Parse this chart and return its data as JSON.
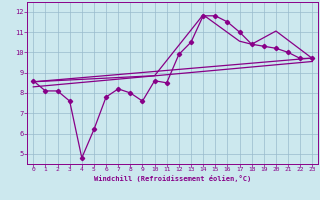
{
  "xlabel": "Windchill (Refroidissement éolien,°C)",
  "xlim": [
    -0.5,
    23.5
  ],
  "ylim": [
    4.5,
    12.5
  ],
  "xticks": [
    0,
    1,
    2,
    3,
    4,
    5,
    6,
    7,
    8,
    9,
    10,
    11,
    12,
    13,
    14,
    15,
    16,
    17,
    18,
    19,
    20,
    21,
    22,
    23
  ],
  "yticks": [
    5,
    6,
    7,
    8,
    9,
    10,
    11,
    12
  ],
  "bg_color": "#cce8ee",
  "line_color": "#880088",
  "grid_color": "#99bbcc",
  "lines": [
    {
      "x": [
        0,
        1,
        2,
        3,
        4,
        5,
        6,
        7,
        8,
        9,
        10,
        11,
        12,
        13,
        14,
        15,
        16,
        17,
        18,
        19,
        20,
        21,
        22,
        23
      ],
      "y": [
        8.6,
        8.1,
        8.1,
        7.6,
        4.8,
        6.2,
        7.8,
        8.2,
        8.0,
        7.6,
        8.6,
        8.5,
        9.9,
        10.5,
        11.8,
        11.8,
        11.5,
        11.0,
        10.4,
        10.3,
        10.2,
        10.0,
        9.7,
        9.7
      ],
      "marker": "D",
      "markersize": 2.2,
      "linewidth": 0.9
    },
    {
      "x": [
        0,
        23
      ],
      "y": [
        8.55,
        9.72
      ],
      "marker": null,
      "markersize": 0,
      "linewidth": 0.9
    },
    {
      "x": [
        0,
        23
      ],
      "y": [
        8.3,
        9.55
      ],
      "marker": null,
      "markersize": 0,
      "linewidth": 0.9
    },
    {
      "x": [
        0,
        10,
        14,
        17,
        18,
        20,
        23
      ],
      "y": [
        8.55,
        8.85,
        11.85,
        10.55,
        10.4,
        11.05,
        9.7
      ],
      "marker": null,
      "markersize": 0,
      "linewidth": 0.9
    }
  ]
}
